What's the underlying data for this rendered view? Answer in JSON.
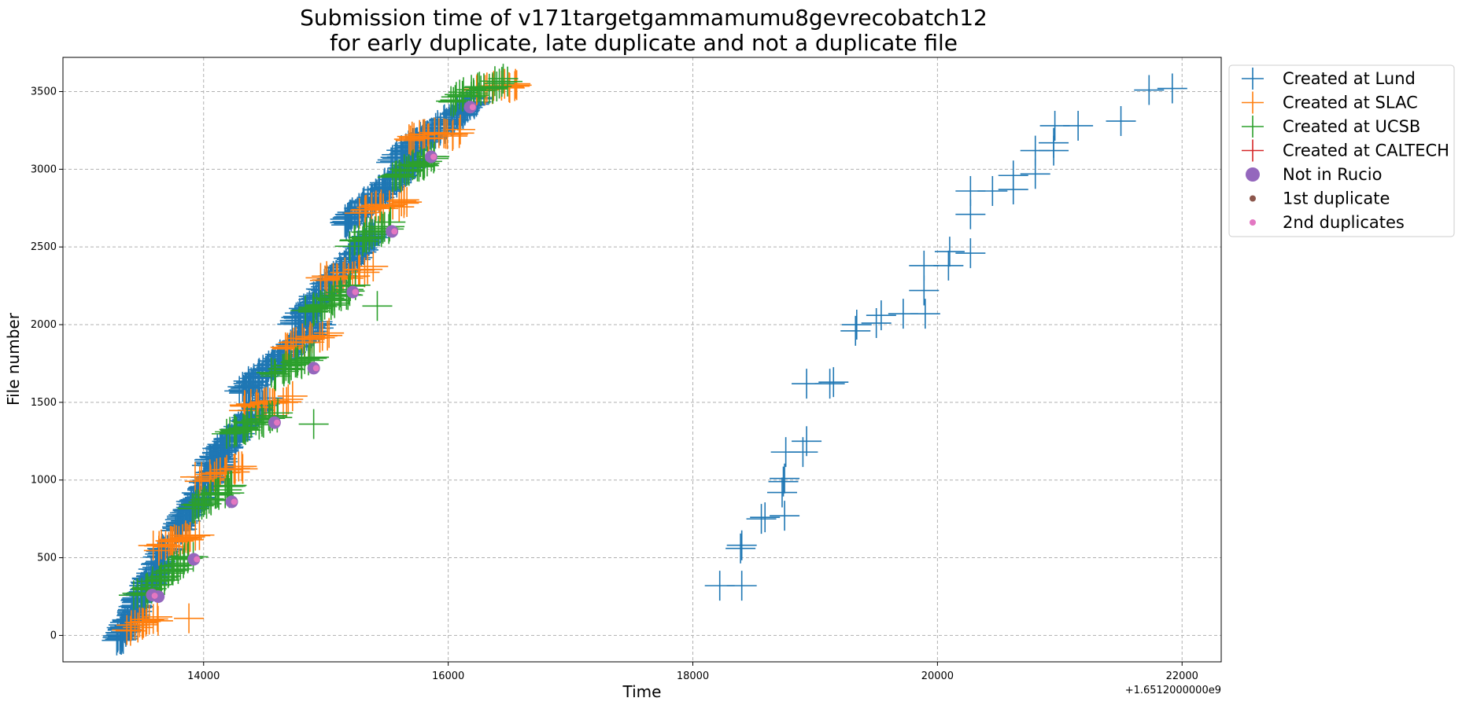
{
  "chart_data": {
    "type": "scatter",
    "title_lines": [
      "Submission time of v171targetgammamumu8gevrecobatch12",
      "for early duplicate, late duplicate and not a duplicate file"
    ],
    "xlabel": "Time",
    "ylabel": "File number",
    "x_offset_label": "+1.6512000000e9",
    "xlim": [
      12850,
      22320
    ],
    "ylim": [
      -170,
      3720
    ],
    "xticks": [
      14000,
      16000,
      18000,
      20000,
      22000
    ],
    "yticks": [
      0,
      500,
      1000,
      1500,
      2000,
      2500,
      3000,
      3500
    ],
    "grid": true,
    "legend_position": "outside-upper-right",
    "legend": [
      {
        "label": "Created at Lund",
        "marker": "plus",
        "color": "#1f77b4"
      },
      {
        "label": "Created at SLAC",
        "marker": "plus",
        "color": "#ff7f0e"
      },
      {
        "label": "Created at UCSB",
        "marker": "plus",
        "color": "#2ca02c"
      },
      {
        "label": "Created at CALTECH",
        "marker": "plus",
        "color": "#d62728"
      },
      {
        "label": "Not in Rucio",
        "marker": "circle-large",
        "color": "#9467bd"
      },
      {
        "label": "1st duplicate",
        "marker": "circle-small",
        "color": "#8c564b"
      },
      {
        "label": "2nd duplicates",
        "marker": "circle-small",
        "color": "#e377c2"
      }
    ],
    "series": [
      {
        "name": "Created at Lund",
        "color": "#1f77b4",
        "bands": [
          {
            "x0": 13300,
            "x1": 13700,
            "y0": -40,
            "y1": 560,
            "n": 120
          },
          {
            "x0": 13780,
            "x1": 14150,
            "y0": 680,
            "y1": 1130,
            "n": 90
          },
          {
            "x0": 14050,
            "x1": 14500,
            "y0": 1100,
            "y1": 1520,
            "n": 90
          },
          {
            "x0": 14300,
            "x1": 14950,
            "y0": 1560,
            "y1": 2010,
            "n": 90
          },
          {
            "x0": 14750,
            "x1": 15400,
            "y0": 2000,
            "y1": 2600,
            "n": 110
          },
          {
            "x0": 15150,
            "x1": 15750,
            "y0": 2650,
            "y1": 3060,
            "n": 90
          },
          {
            "x0": 15550,
            "x1": 16250,
            "y0": 3060,
            "y1": 3450,
            "n": 90
          }
        ],
        "points": [
          [
            18220,
            320
          ],
          [
            18400,
            320
          ],
          [
            18390,
            560
          ],
          [
            18400,
            580
          ],
          [
            18560,
            750
          ],
          [
            18590,
            760
          ],
          [
            18750,
            770
          ],
          [
            18730,
            920
          ],
          [
            18740,
            990
          ],
          [
            18750,
            1010
          ],
          [
            18760,
            1180
          ],
          [
            18900,
            1180
          ],
          [
            18930,
            1250
          ],
          [
            18930,
            1620
          ],
          [
            19120,
            1620
          ],
          [
            19150,
            1630
          ],
          [
            19330,
            1960
          ],
          [
            19340,
            2000
          ],
          [
            19500,
            2010
          ],
          [
            19540,
            2060
          ],
          [
            19720,
            2070
          ],
          [
            19900,
            2070
          ],
          [
            19890,
            2220
          ],
          [
            19890,
            2380
          ],
          [
            20090,
            2380
          ],
          [
            20100,
            2470
          ],
          [
            20270,
            2460
          ],
          [
            20270,
            2710
          ],
          [
            20270,
            2860
          ],
          [
            20450,
            2860
          ],
          [
            20620,
            2870
          ],
          [
            20620,
            2960
          ],
          [
            20800,
            2970
          ],
          [
            20800,
            3120
          ],
          [
            20950,
            3120
          ],
          [
            20950,
            3170
          ],
          [
            20960,
            3280
          ],
          [
            21150,
            3280
          ],
          [
            21500,
            3310
          ],
          [
            21730,
            3510
          ],
          [
            21920,
            3520
          ]
        ]
      },
      {
        "name": "Created at SLAC",
        "color": "#ff7f0e",
        "bands": [
          {
            "x0": 13350,
            "x1": 13650,
            "y0": 40,
            "y1": 120,
            "n": 15
          },
          {
            "x0": 13600,
            "x1": 13950,
            "y0": 560,
            "y1": 650,
            "n": 20
          },
          {
            "x0": 13950,
            "x1": 14350,
            "y0": 1000,
            "y1": 1080,
            "n": 18
          },
          {
            "x0": 14300,
            "x1": 14720,
            "y0": 1460,
            "y1": 1530,
            "n": 18
          },
          {
            "x0": 14650,
            "x1": 15030,
            "y0": 1860,
            "y1": 1930,
            "n": 16
          },
          {
            "x0": 14950,
            "x1": 15380,
            "y0": 2280,
            "y1": 2360,
            "n": 18
          },
          {
            "x0": 15250,
            "x1": 15700,
            "y0": 2730,
            "y1": 2790,
            "n": 18
          },
          {
            "x0": 15650,
            "x1": 16100,
            "y0": 3190,
            "y1": 3240,
            "n": 18
          },
          {
            "x0": 16200,
            "x1": 16600,
            "y0": 3520,
            "y1": 3550,
            "n": 12
          }
        ],
        "points": [
          [
            13880,
            110
          ],
          [
            16550,
            3550
          ]
        ]
      },
      {
        "name": "Created at UCSB",
        "color": "#2ca02c",
        "bands": [
          {
            "x0": 13450,
            "x1": 13900,
            "y0": 250,
            "y1": 520,
            "n": 30
          },
          {
            "x0": 13900,
            "x1": 14250,
            "y0": 820,
            "y1": 960,
            "n": 25
          },
          {
            "x0": 14200,
            "x1": 14600,
            "y0": 1300,
            "y1": 1430,
            "n": 25
          },
          {
            "x0": 14550,
            "x1": 14900,
            "y0": 1680,
            "y1": 1790,
            "n": 22
          },
          {
            "x0": 14850,
            "x1": 15250,
            "y0": 2080,
            "y1": 2240,
            "n": 25
          },
          {
            "x0": 15200,
            "x1": 15550,
            "y0": 2520,
            "y1": 2650,
            "n": 22
          },
          {
            "x0": 15550,
            "x1": 15900,
            "y0": 2950,
            "y1": 3080,
            "n": 22
          },
          {
            "x0": 16000,
            "x1": 16500,
            "y0": 3440,
            "y1": 3580,
            "n": 25
          }
        ],
        "points": [
          [
            14900,
            1360
          ],
          [
            15420,
            2120
          ]
        ]
      },
      {
        "name": "Not in Rucio",
        "color": "#9467bd",
        "points": [
          [
            13580,
            260
          ],
          [
            13630,
            250
          ],
          [
            13920,
            490
          ],
          [
            14230,
            860
          ],
          [
            14580,
            1370
          ],
          [
            14900,
            1720
          ],
          [
            15220,
            2210
          ],
          [
            15540,
            2600
          ],
          [
            15860,
            3080
          ],
          [
            16180,
            3400
          ]
        ]
      },
      {
        "name": "1st duplicate",
        "color": "#8c564b",
        "points": [
          [
            13600,
            255
          ],
          [
            13945,
            490
          ],
          [
            14250,
            860
          ],
          [
            14600,
            1370
          ],
          [
            14920,
            1720
          ],
          [
            15240,
            2210
          ],
          [
            15560,
            2600
          ],
          [
            15880,
            3080
          ],
          [
            16200,
            3400
          ]
        ]
      },
      {
        "name": "2nd duplicates",
        "color": "#e377c2",
        "points": [
          [
            13600,
            255
          ],
          [
            13945,
            490
          ],
          [
            14250,
            860
          ],
          [
            14600,
            1370
          ],
          [
            14920,
            1720
          ],
          [
            15240,
            2210
          ],
          [
            15560,
            2600
          ],
          [
            15880,
            3080
          ],
          [
            16200,
            3400
          ]
        ]
      }
    ]
  }
}
